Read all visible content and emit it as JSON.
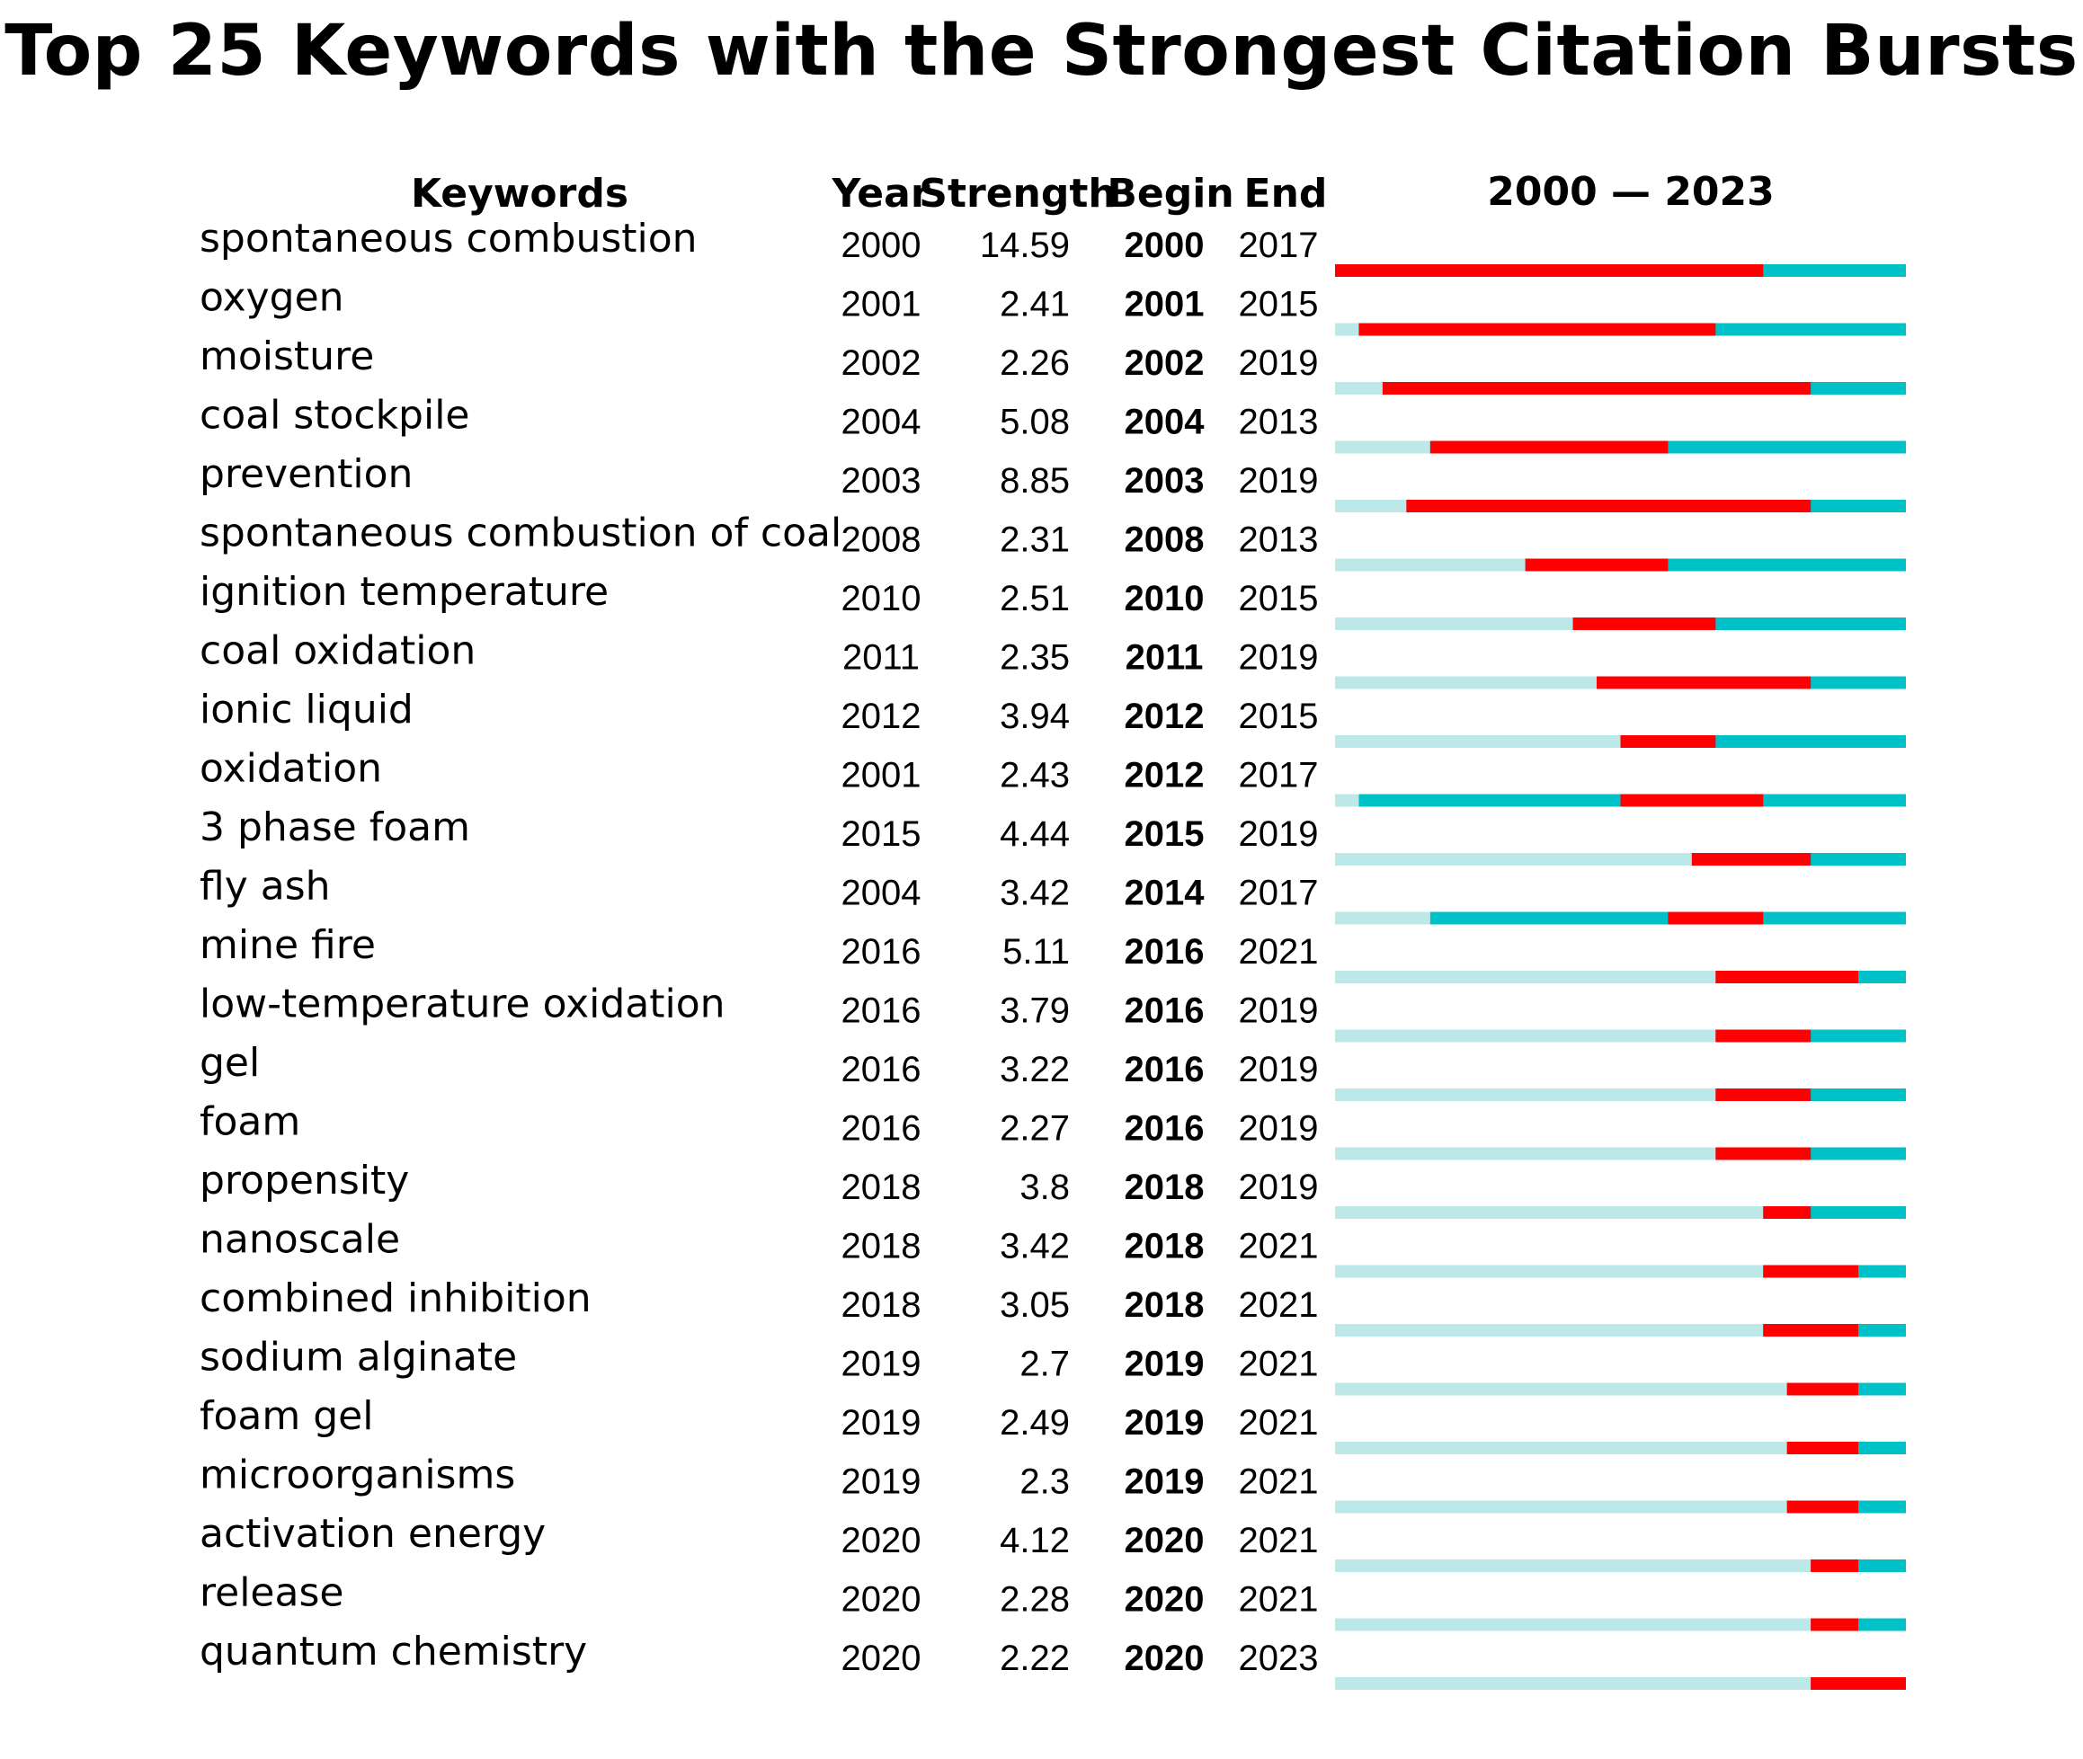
{
  "title": "Top 25 Keywords with the Strongest Citation Bursts",
  "headers": {
    "keywords": "Keywords",
    "year": "Year",
    "strength": "Strength",
    "begin": "Begin",
    "end": "End",
    "timeline": "2000 — 2023"
  },
  "colors": {
    "burst": "#ff0000",
    "active": "#00c0c8",
    "before": "#bde8e8"
  },
  "chart_data": {
    "type": "table",
    "year_range": [
      2000,
      2023
    ],
    "rows": [
      {
        "keyword": "spontaneous combustion",
        "year": "2000",
        "strength": "14.59",
        "begin": "2000",
        "end": "2017"
      },
      {
        "keyword": "oxygen",
        "year": "2001",
        "strength": "2.41",
        "begin": "2001",
        "end": "2015"
      },
      {
        "keyword": "moisture",
        "year": "2002",
        "strength": "2.26",
        "begin": "2002",
        "end": "2019"
      },
      {
        "keyword": "coal stockpile",
        "year": "2004",
        "strength": "5.08",
        "begin": "2004",
        "end": "2013"
      },
      {
        "keyword": "prevention",
        "year": "2003",
        "strength": "8.85",
        "begin": "2003",
        "end": "2019"
      },
      {
        "keyword": "spontaneous combustion of coal",
        "year": "2008",
        "strength": "2.31",
        "begin": "2008",
        "end": "2013"
      },
      {
        "keyword": "ignition temperature",
        "year": "2010",
        "strength": "2.51",
        "begin": "2010",
        "end": "2015"
      },
      {
        "keyword": "coal oxidation",
        "year": "2011",
        "strength": "2.35",
        "begin": "2011",
        "end": "2019"
      },
      {
        "keyword": "ionic liquid",
        "year": "2012",
        "strength": "3.94",
        "begin": "2012",
        "end": "2015"
      },
      {
        "keyword": "oxidation",
        "year": "2001",
        "strength": "2.43",
        "begin": "2012",
        "end": "2017"
      },
      {
        "keyword": "3 phase foam",
        "year": "2015",
        "strength": "4.44",
        "begin": "2015",
        "end": "2019"
      },
      {
        "keyword": "fly ash",
        "year": "2004",
        "strength": "3.42",
        "begin": "2014",
        "end": "2017"
      },
      {
        "keyword": "mine fire",
        "year": "2016",
        "strength": "5.11",
        "begin": "2016",
        "end": "2021"
      },
      {
        "keyword": "low-temperature oxidation",
        "year": "2016",
        "strength": "3.79",
        "begin": "2016",
        "end": "2019"
      },
      {
        "keyword": "gel",
        "year": "2016",
        "strength": "3.22",
        "begin": "2016",
        "end": "2019"
      },
      {
        "keyword": "foam",
        "year": "2016",
        "strength": "2.27",
        "begin": "2016",
        "end": "2019"
      },
      {
        "keyword": "propensity",
        "year": "2018",
        "strength": "3.8",
        "begin": "2018",
        "end": "2019"
      },
      {
        "keyword": "nanoscale",
        "year": "2018",
        "strength": "3.42",
        "begin": "2018",
        "end": "2021"
      },
      {
        "keyword": "combined inhibition",
        "year": "2018",
        "strength": "3.05",
        "begin": "2018",
        "end": "2021"
      },
      {
        "keyword": "sodium alginate",
        "year": "2019",
        "strength": "2.7",
        "begin": "2019",
        "end": "2021"
      },
      {
        "keyword": "foam gel",
        "year": "2019",
        "strength": "2.49",
        "begin": "2019",
        "end": "2021"
      },
      {
        "keyword": "microorganisms",
        "year": "2019",
        "strength": "2.3",
        "begin": "2019",
        "end": "2021"
      },
      {
        "keyword": "activation energy",
        "year": "2020",
        "strength": "4.12",
        "begin": "2020",
        "end": "2021"
      },
      {
        "keyword": "release",
        "year": "2020",
        "strength": "2.28",
        "begin": "2020",
        "end": "2021"
      },
      {
        "keyword": "quantum chemistry",
        "year": "2020",
        "strength": "2.22",
        "begin": "2020",
        "end": "2023"
      }
    ]
  }
}
